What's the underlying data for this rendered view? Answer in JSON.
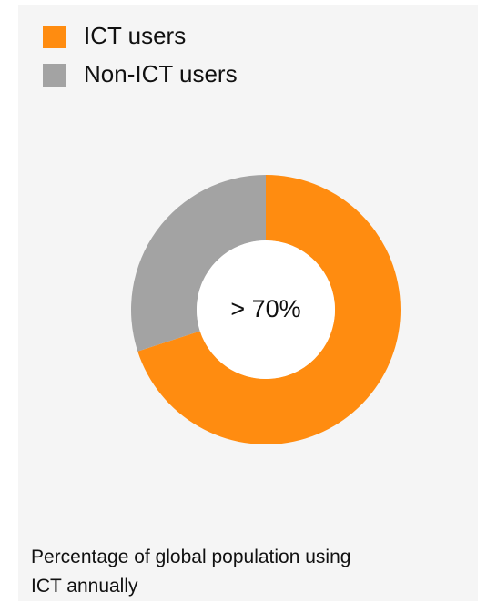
{
  "chart_data": {
    "type": "pie",
    "donut": true,
    "series": [
      {
        "name": "ICT users",
        "color": "#ff8c10",
        "values": [
          70
        ]
      },
      {
        "name": "Non-ICT users",
        "color": "#a3a3a3",
        "values": [
          30
        ]
      }
    ],
    "center_label": "> 70%",
    "caption": "Percentage of global population using ICT annually",
    "legend": "top-left"
  }
}
